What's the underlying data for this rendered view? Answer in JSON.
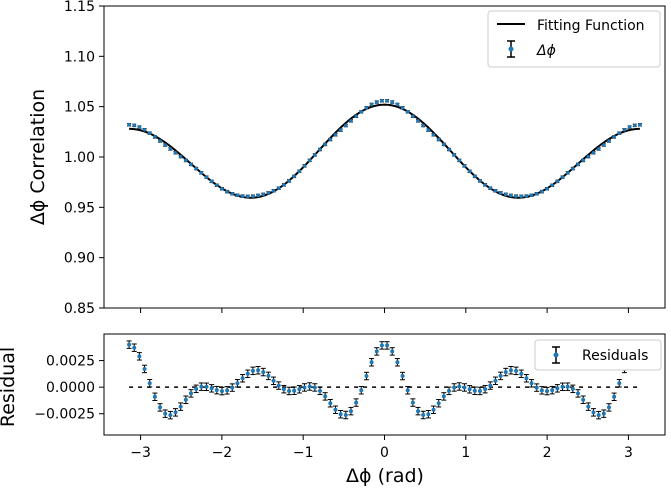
{
  "chart_data": [
    {
      "type": "scatter",
      "ylabel": "Δϕ Correlation",
      "xlim": [
        -3.45,
        3.45
      ],
      "ylim": [
        0.85,
        1.15
      ],
      "yticks": [
        "0.85",
        "0.90",
        "0.95",
        "1.00",
        "1.05",
        "1.10",
        "1.15"
      ],
      "ytick_values": [
        0.85,
        0.9,
        0.95,
        1.0,
        1.05,
        1.1,
        1.15
      ],
      "legend_position": "top-right",
      "series": [
        {
          "name": "Fitting Function",
          "kind": "line",
          "color": "#000000",
          "model": "y = 1.0 + 0.012*cos(x) + 0.040*cos(2x)"
        },
        {
          "name": "Δϕ",
          "kind": "errorbar",
          "color": "#1f77b4",
          "x_range": [
            -3.1416,
            3.1416
          ],
          "points": 100,
          "model": "y = fit + 0.0016*cos(4x) + 0.0012*cos(6x) + 0.0012*cos(8x)",
          "yerr": 0.0012
        }
      ],
      "grid": false
    },
    {
      "type": "scatter",
      "xlabel": "Δϕ (rad)",
      "ylabel": "Residual",
      "xlim": [
        -3.45,
        3.45
      ],
      "ylim": [
        -0.0045,
        0.005
      ],
      "xticks": [
        "−3",
        "−2",
        "−1",
        "0",
        "1",
        "2",
        "3"
      ],
      "xtick_values": [
        -3,
        -2,
        -1,
        0,
        1,
        2,
        3
      ],
      "yticks": [
        "−0.0025",
        "0.0000",
        "0.0025"
      ],
      "ytick_values": [
        -0.0025,
        0.0,
        0.0025
      ],
      "legend_position": "top-right",
      "reference_line": {
        "y": 0.0,
        "style": "dashed",
        "color": "#000000"
      },
      "series": [
        {
          "name": "Residuals",
          "kind": "errorbar",
          "color": "#1f77b4",
          "x_range": [
            -3.1416,
            3.1416
          ],
          "points": 100,
          "model": "y = 0.0016*cos(4x) + 0.0012*cos(6x) + 0.0012*cos(8x)",
          "yerr": 0.00035
        }
      ],
      "grid": false
    }
  ]
}
